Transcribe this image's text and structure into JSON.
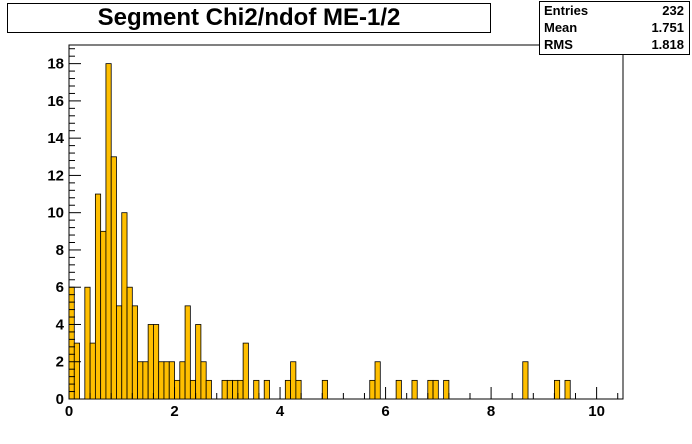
{
  "chart_data": {
    "type": "bar",
    "title": "Segment Chi2/ndof ME-1/2",
    "stats": [
      {
        "label": "Entries",
        "value": "232"
      },
      {
        "label": "Mean",
        "value": "1.751"
      },
      {
        "label": "RMS",
        "value": "1.818"
      }
    ],
    "xlim": [
      0,
      10.5
    ],
    "ylim": [
      0,
      19
    ],
    "x_ticks": [
      0,
      2,
      4,
      6,
      8,
      10
    ],
    "y_ticks": [
      0,
      2,
      4,
      6,
      8,
      10,
      12,
      14,
      16,
      18
    ],
    "bin_width": 0.1,
    "bin_lower_edges": [
      0.0,
      0.1,
      0.3,
      0.4,
      0.5,
      0.6,
      0.7,
      0.8,
      0.9,
      1.0,
      1.1,
      1.2,
      1.3,
      1.4,
      1.5,
      1.6,
      1.7,
      1.8,
      1.9,
      2.0,
      2.1,
      2.2,
      2.3,
      2.4,
      2.5,
      2.6,
      2.9,
      3.0,
      3.1,
      3.2,
      3.3,
      3.5,
      3.7,
      4.1,
      4.2,
      4.3,
      4.8,
      5.7,
      5.8,
      6.2,
      6.5,
      6.8,
      6.9,
      7.1,
      8.6,
      9.2,
      9.4
    ],
    "values": [
      6,
      3,
      6,
      3,
      11,
      9,
      18,
      13,
      5,
      10,
      6,
      5,
      2,
      2,
      4,
      4,
      2,
      2,
      2,
      1,
      2,
      5,
      1,
      4,
      2,
      1,
      1,
      1,
      1,
      1,
      3,
      1,
      1,
      1,
      2,
      1,
      1,
      1,
      2,
      1,
      1,
      1,
      1,
      1,
      2,
      1,
      1
    ],
    "colors": {
      "bar_fill": "#ffbf00",
      "bar_edge": "#000000",
      "axis": "#000000"
    }
  }
}
